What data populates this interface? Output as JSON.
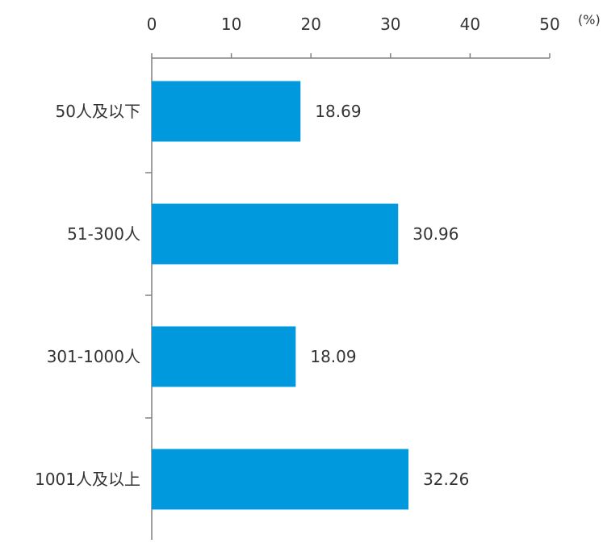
{
  "chart_data": {
    "type": "bar",
    "orientation": "horizontal",
    "title": "",
    "xlabel": "",
    "ylabel": "",
    "unit_label": "(%)",
    "categories": [
      "50人及以下",
      "51-300人",
      "301-1000人",
      "1001人及以上"
    ],
    "values": [
      18.69,
      30.96,
      18.09,
      32.26
    ],
    "data_labels": [
      "18.69",
      "30.96",
      "18.09",
      "32.26"
    ],
    "xlim": [
      0,
      50
    ],
    "x_ticks": [
      0,
      10,
      20,
      30,
      40,
      50
    ],
    "x_tick_labels": [
      "0",
      "10",
      "20",
      "30",
      "40",
      "50"
    ],
    "x_axis_position": "top",
    "grid": false,
    "legend": "none",
    "bar_color": "#0099DD",
    "axis_color": "#808080",
    "text_color": "#333333"
  }
}
